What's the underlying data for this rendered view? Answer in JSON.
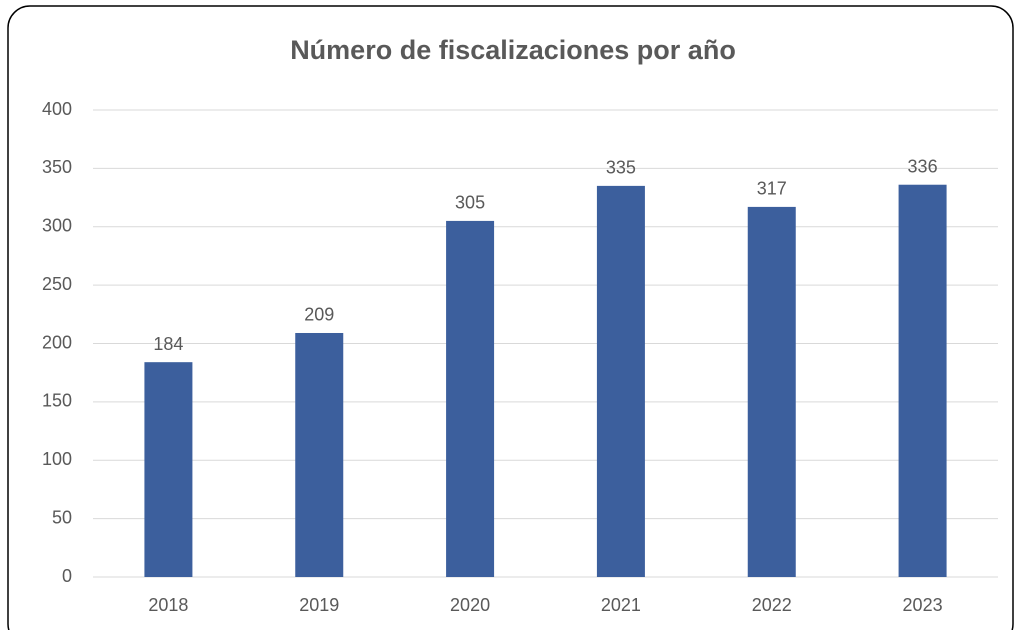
{
  "chart_data": {
    "type": "bar",
    "title": "Número de fiscalizaciones por año",
    "categories": [
      "2018",
      "2019",
      "2020",
      "2021",
      "2022",
      "2023"
    ],
    "values": [
      184,
      209,
      305,
      335,
      317,
      336
    ],
    "color": "#3c5f9d",
    "ylim": [
      0,
      400
    ],
    "yticks": [
      0,
      50,
      100,
      150,
      200,
      250,
      300,
      350,
      400
    ],
    "grid": true,
    "data_labels": true
  }
}
